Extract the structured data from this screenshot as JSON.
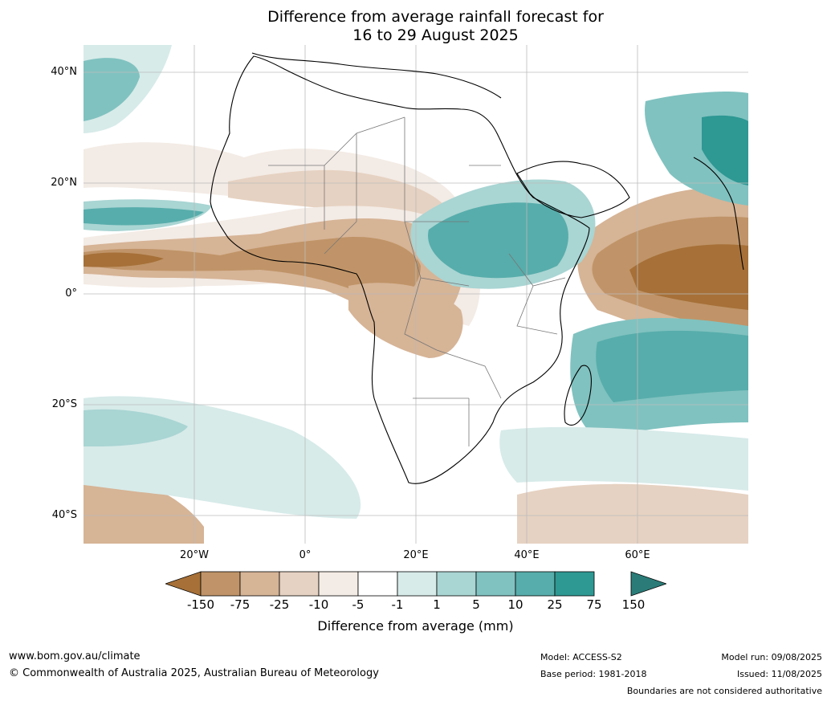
{
  "title": {
    "line1": "Difference from average rainfall forecast for",
    "line2": "16 to 29 August 2025"
  },
  "map": {
    "lat_ticks": [
      "40°N",
      "20°N",
      "0°",
      "20°S",
      "40°S"
    ],
    "lon_ticks": [
      "20°W",
      "0°",
      "20°E",
      "40°E",
      "60°E"
    ],
    "region": "Africa"
  },
  "colorbar": {
    "ticks": [
      "-150",
      "-75",
      "-25",
      "-10",
      "-5",
      "-1",
      "1",
      "5",
      "10",
      "25",
      "75",
      "150"
    ],
    "label": "Difference from average (mm)",
    "colors": [
      "#a67038",
      "#c09468",
      "#d6b496",
      "#e6d2c2",
      "#f3ebe5",
      "#ffffff",
      "#d7ebe9",
      "#a9d5d3",
      "#80c2c0",
      "#57adab",
      "#2e9893",
      "#2b7c78"
    ]
  },
  "footer": {
    "url": "www.bom.gov.au/climate",
    "copyright": "© Commonwealth of Australia 2025, Australian Bureau of Meteorology",
    "model": "Model: ACCESS-S2",
    "base_period": "Base period: 1981-2018",
    "model_run": "Model run: 09/08/2025",
    "issued": "Issued: 11/08/2025",
    "boundaries": "Boundaries are not considered authoritative"
  }
}
